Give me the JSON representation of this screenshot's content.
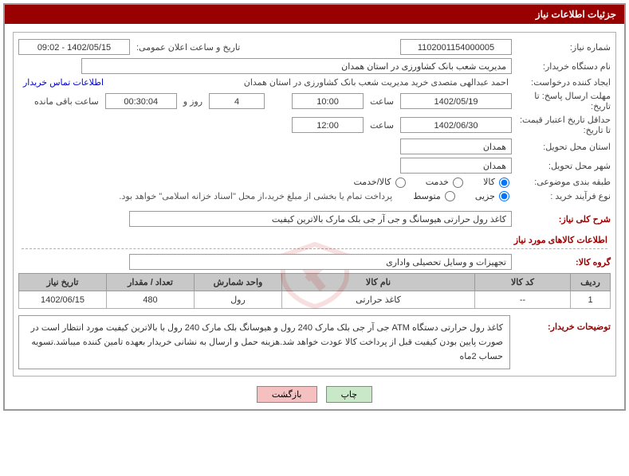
{
  "panel_title": "جزئیات اطلاعات نیاز",
  "labels": {
    "need_no": "شماره نیاز:",
    "announce": "تاریخ و ساعت اعلان عمومی:",
    "buyer_org": "نام دستگاه خریدار:",
    "requester": "ایجاد کننده درخواست:",
    "contact": "اطلاعات تماس خریدار",
    "reply_deadline_to": "مهلت ارسال پاسخ: تا تاریخ:",
    "time": "ساعت",
    "days_and": "روز و",
    "remaining": "ساعت باقی مانده",
    "quote_valid_to": "حداقل تاریخ اعتبار قیمت: تا تاریخ:",
    "delivery_province": "استان محل تحویل:",
    "delivery_city": "شهر محل تحویل:",
    "classification": "طبقه بندی موضوعی:",
    "class_goods": "کالا",
    "class_service": "خدمت",
    "class_both": "کالا/خدمت",
    "purchase_type": "نوع فرآیند خرید :",
    "ptype_partial": "جزیی",
    "ptype_medium": "متوسط",
    "payment_note": "پرداخت تمام یا بخشی از مبلغ خرید،از محل \"اسناد خزانه اسلامی\" خواهد بود.",
    "overall_desc": "شرح کلی نیاز:",
    "goods_info": "اطلاعات کالاهای مورد نیاز",
    "goods_group": "گروه کالا:",
    "buyer_notes": "توضیحات خریدار:"
  },
  "values": {
    "need_no": "1102001154000005",
    "announce": "1402/05/15 - 09:02",
    "buyer_org": "مدیریت شعب بانک کشاورزی در استان همدان",
    "requester": "احمد  عبدالهی متصدی خرید مدیریت شعب بانک کشاورزی در استان همدان",
    "reply_date": "1402/05/19",
    "reply_time": "10:00",
    "remaining_days": "4",
    "remaining_time": "00:30:04",
    "quote_date": "1402/06/30",
    "quote_time": "12:00",
    "province": "همدان",
    "city": "همدان",
    "overall_desc": "کاغذ رول حرارتی هیوسانگ و جی آر جی بلک مارک بالاترین کیفیت",
    "goods_group": "تجهیزات و وسایل تحصیلی واداری",
    "buyer_notes": "کاغذ رول حرارتی  دستگاه ATM جی آر جی بلک مارک 240 رول و هیوسانگ بلک مارک 240 رول با بالاترین کیفیت مورد انتظار است در صورت پایین بودن کیفیت قبل از پرداخت کالا عودت خواهد شد.هزینه حمل و ارسال به نشانی خریدار بعهده تامین کننده میباشد.تسویه حساب 2ماه"
  },
  "radios": {
    "class_selected": "goods",
    "ptype_selected": "partial"
  },
  "table": {
    "headers": {
      "row": "ردیف",
      "code": "کد کالا",
      "name": "نام کالا",
      "unit": "واحد شمارش",
      "qty": "تعداد / مقدار",
      "need_date": "تاریخ نیاز"
    },
    "rows": [
      {
        "row": "1",
        "code": "--",
        "name": "کاغذ حرارتی",
        "unit": "رول",
        "qty": "480",
        "need_date": "1402/06/15"
      }
    ]
  },
  "buttons": {
    "print": "چاپ",
    "back": "بازگشت"
  }
}
